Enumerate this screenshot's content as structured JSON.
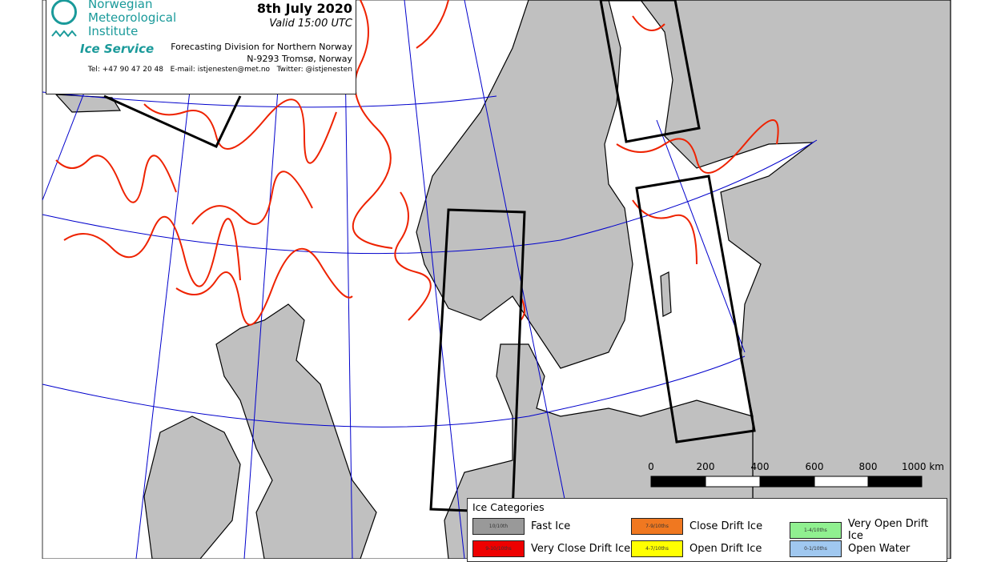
{
  "header": {
    "org_lines": [
      "Norwegian",
      "Meteorological",
      "Institute"
    ],
    "service": "Ice Service",
    "date": "8th July 2020",
    "valid": "Valid 15:00 UTC",
    "division": "Forecasting Division for Northern Norway",
    "address": "N-9293 Tromsø, Norway",
    "contact": "Tel: +47 90 47 20 48   E-mail: istjenesten@met.no   Twitter: @istjenesten"
  },
  "legend": {
    "title": "Ice Categories",
    "items": [
      {
        "code": "10/10th",
        "label": "Fast Ice",
        "color": "#999999"
      },
      {
        "code": "9-10/10ths",
        "label": "Very Close Drift Ice",
        "color": "#ee0000"
      },
      {
        "code": "7-9/10ths",
        "label": "Close Drift Ice",
        "color": "#f07820"
      },
      {
        "code": "4-7/10ths",
        "label": "Open Drift Ice",
        "color": "#ffff00"
      },
      {
        "code": "1-4/10ths",
        "label": "Very Open Drift Ice",
        "color": "#90f090"
      },
      {
        "code": "0-1/10ths",
        "label": "Open Water",
        "color": "#a0c8f0"
      }
    ]
  },
  "scale": {
    "labels": [
      "0",
      "200",
      "400",
      "600",
      "800",
      "1000 km"
    ]
  },
  "colors": {
    "land": "#c0c0c0",
    "grid": "#0000cc",
    "ice_edge": "#ee2200",
    "sea": "#ffffff"
  }
}
